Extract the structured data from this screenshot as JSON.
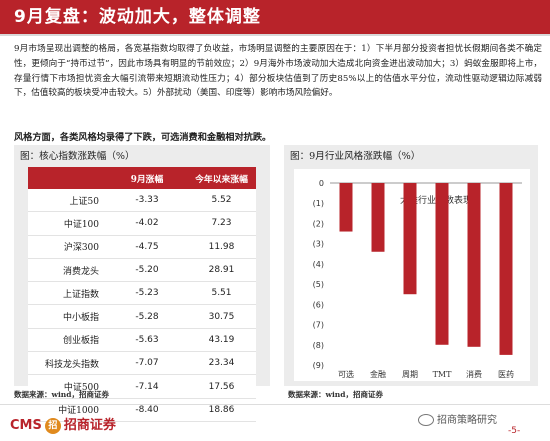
{
  "header": {
    "title": "9月复盘：波动加大，整体调整"
  },
  "body": {
    "paragraph": "9月市场呈现出调整的格局，各宽基指数均取得了负收益，市场明显调整的主要原因在于：1）下半月部分投资者担忧长假期间各类不确定性，更倾向于“持币过节”，因此市场具有明显的节前效应；2）9月海外市场波动加大造成北向资金进出波动加大；3）蚂蚁金服即将上市，存量行情下市场担忧资金大幅引流带来短期流动性压力；4）部分板块估值到了历史85%以上的估值水平分位，流动性驱动逻辑边际减弱下，估值较高的板块受冲击较大。5）外部扰动（美国、印度等）影响市场风险偏好。",
    "style_line": "风格方面，各类风格均录得了下跌，可选消费和金融相对抗跌。"
  },
  "left_panel": {
    "title": "图：核心指数涨跌幅（%）",
    "columns": [
      "",
      "9月涨幅",
      "今年以来涨幅"
    ],
    "rows": [
      {
        "name": "上证50",
        "sep": "-3.33",
        "ytd": "5.52"
      },
      {
        "name": "中证100",
        "sep": "-4.02",
        "ytd": "7.23"
      },
      {
        "name": "沪深300",
        "sep": "-4.75",
        "ytd": "11.98"
      },
      {
        "name": "消费龙头",
        "sep": "-5.20",
        "ytd": "28.91"
      },
      {
        "name": "上证指数",
        "sep": "-5.23",
        "ytd": "5.51"
      },
      {
        "name": "中小板指",
        "sep": "-5.28",
        "ytd": "30.75"
      },
      {
        "name": "创业板指",
        "sep": "-5.63",
        "ytd": "43.19"
      },
      {
        "name": "科技龙头指数",
        "sep": "-7.07",
        "ytd": "23.34"
      },
      {
        "name": "中证500",
        "sep": "-7.14",
        "ytd": "17.56"
      },
      {
        "name": "中证1000",
        "sep": "-8.40",
        "ytd": "18.86"
      }
    ],
    "source": "数据来源：wind，招商证券"
  },
  "right_panel": {
    "title": "图：9月行业风格涨跌幅（%）",
    "source": "数据来源：wind，招商证券"
  },
  "chart_data": {
    "type": "bar",
    "title": "大类行业指数表现",
    "categories": [
      "可选",
      "金融",
      "周期",
      "TMT",
      "消费",
      "医药"
    ],
    "values": [
      -2.4,
      -3.4,
      -5.5,
      -8.0,
      -8.1,
      -8.5
    ],
    "ylim": [
      -9,
      0
    ],
    "yticks": [
      "0",
      "(1)",
      "(2)",
      "(3)",
      "(4)",
      "(5)",
      "(6)",
      "(7)",
      "(8)",
      "(9)"
    ],
    "bar_color": "#b8232a",
    "xlabel": "",
    "ylabel": ""
  },
  "footer": {
    "logo_text": "CMS",
    "logo_mark": "招",
    "logo_cn": "招商证券",
    "watermark": "招商策略研究",
    "page": "-5-"
  }
}
